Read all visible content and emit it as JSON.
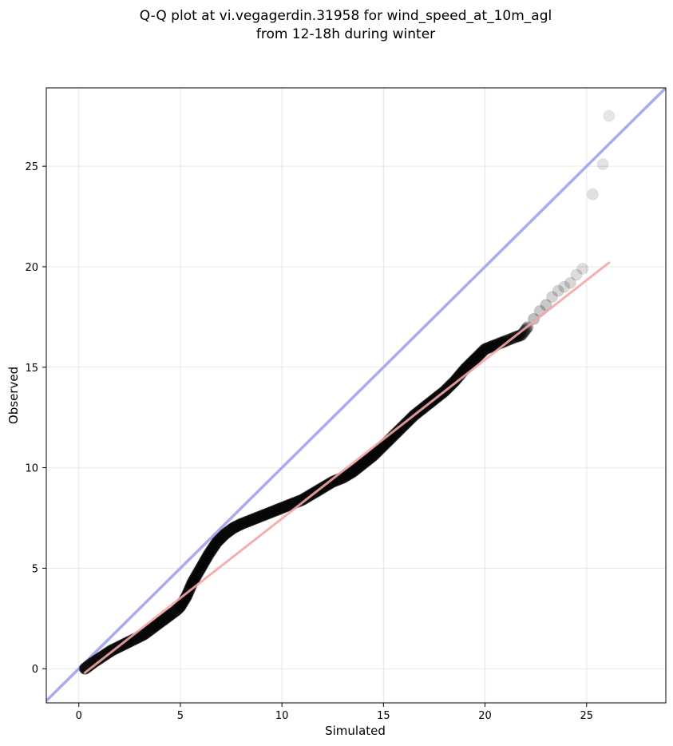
{
  "chart_data": {
    "type": "scatter",
    "title": [
      "Q-Q plot at vi.vegagerdin.31958 for wind_speed_at_10m_agl",
      "from 12-18h during winter"
    ],
    "xlabel": "Simulated",
    "ylabel": "Observed",
    "xlim": [
      -1.6,
      28.9
    ],
    "ylim": [
      -1.7,
      28.9
    ],
    "xticks": [
      0,
      5,
      10,
      15,
      20,
      25
    ],
    "yticks": [
      0,
      5,
      10,
      15,
      20,
      25
    ],
    "grid": true,
    "identity_line": {
      "from": [
        -1.6,
        -1.6
      ],
      "to": [
        28.9,
        28.9
      ],
      "color": "#a8abf0"
    },
    "fit_line": {
      "from": [
        0.3,
        -0.2
      ],
      "to": [
        26.1,
        20.2
      ],
      "color": "#f4a6a6"
    },
    "point_color": "#000000",
    "series": [
      {
        "x": [
          0.3,
          0.5,
          0.7,
          1.0,
          1.3,
          1.6,
          2.0,
          2.4,
          2.8,
          3.2,
          3.6,
          4.0,
          4.4,
          4.8,
          5.0,
          5.3,
          5.6,
          6.0,
          6.4,
          6.8,
          7.2,
          7.6,
          8.0,
          8.5,
          9.0,
          9.5,
          10.0,
          10.5,
          11.0,
          11.5,
          12.0,
          12.5,
          13.0,
          13.5,
          14.0,
          14.5,
          15.0,
          15.5,
          16.0,
          16.5,
          17.0,
          17.5,
          18.0,
          18.5,
          19.0,
          19.5,
          20.0,
          20.5,
          21.0,
          21.5,
          21.8,
          22.1,
          22.4,
          22.7,
          23.0,
          23.3,
          23.6,
          23.9,
          24.2,
          24.5,
          24.8,
          25.3,
          25.8,
          26.1
        ],
        "y": [
          0.0,
          0.15,
          0.3,
          0.5,
          0.7,
          0.9,
          1.1,
          1.3,
          1.5,
          1.7,
          2.0,
          2.3,
          2.6,
          2.9,
          3.1,
          3.6,
          4.3,
          5.0,
          5.7,
          6.3,
          6.7,
          7.0,
          7.2,
          7.4,
          7.6,
          7.8,
          8.0,
          8.2,
          8.4,
          8.7,
          9.0,
          9.3,
          9.5,
          9.8,
          10.2,
          10.6,
          11.1,
          11.6,
          12.1,
          12.6,
          13.0,
          13.4,
          13.8,
          14.3,
          14.9,
          15.4,
          15.9,
          16.1,
          16.3,
          16.5,
          16.6,
          17.0,
          17.4,
          17.8,
          18.1,
          18.5,
          18.8,
          19.0,
          19.2,
          19.6,
          19.9,
          23.6,
          25.1,
          27.5
        ],
        "opacity": [
          0.9,
          0.9,
          0.9,
          0.9,
          0.9,
          0.9,
          0.9,
          0.9,
          0.9,
          0.9,
          0.9,
          0.9,
          0.9,
          0.9,
          0.9,
          0.9,
          0.9,
          0.9,
          0.9,
          0.9,
          0.9,
          0.9,
          0.9,
          0.9,
          0.9,
          0.9,
          0.9,
          0.9,
          0.9,
          0.9,
          0.9,
          0.9,
          0.9,
          0.9,
          0.9,
          0.9,
          0.9,
          0.9,
          0.9,
          0.9,
          0.9,
          0.9,
          0.9,
          0.9,
          0.9,
          0.85,
          0.8,
          0.65,
          0.5,
          0.4,
          0.35,
          0.3,
          0.3,
          0.25,
          0.25,
          0.2,
          0.2,
          0.18,
          0.18,
          0.16,
          0.15,
          0.14,
          0.13,
          0.12
        ]
      }
    ]
  }
}
